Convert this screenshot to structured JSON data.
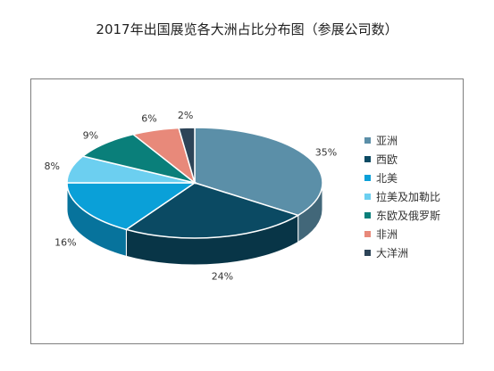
{
  "chart_data": {
    "type": "pie",
    "title": "2017年出国展览各大洲占比分布图（参展公司数）",
    "categories": [
      "亚洲",
      "西欧",
      "北美",
      "拉美及加勒比",
      "东欧及俄罗斯",
      "非洲",
      "大洋洲"
    ],
    "values": [
      35,
      24,
      16,
      8,
      9,
      6,
      2
    ],
    "labels": [
      "35%",
      "24%",
      "16%",
      "8%",
      "9%",
      "6%",
      "2%"
    ],
    "colors": [
      "#5b8fa8",
      "#0b4a63",
      "#0aa0d8",
      "#6ccff0",
      "#0a7f7a",
      "#e8897a",
      "#2d4458"
    ],
    "legend_position": "right",
    "style": "3d"
  }
}
